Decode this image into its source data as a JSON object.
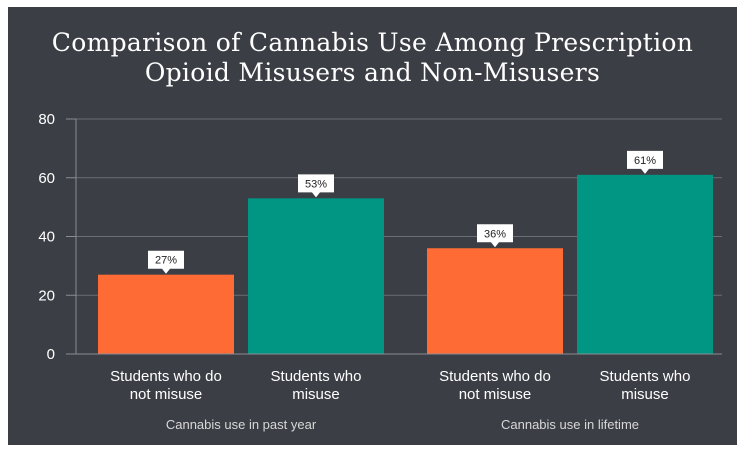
{
  "chart_data": {
    "type": "bar",
    "title_lines": [
      "Comparison of Cannabis Use Among Prescription",
      "Opioid Misusers and Non-Misusers"
    ],
    "ylim": [
      0,
      80
    ],
    "yticks": [
      0,
      20,
      40,
      60,
      80
    ],
    "grid": true,
    "groups": [
      {
        "label": "Cannabis use in past year",
        "bars": [
          {
            "category": [
              "Students who do",
              "not misuse"
            ],
            "value": 27,
            "label": "27%",
            "color": "#ff6b35"
          },
          {
            "category": [
              "Students who",
              "misuse"
            ],
            "value": 53,
            "label": "53%",
            "color": "#009683"
          }
        ]
      },
      {
        "label": "Cannabis use in lifetime",
        "bars": [
          {
            "category": [
              "Students who do",
              "not misuse"
            ],
            "value": 36,
            "label": "36%",
            "color": "#ff6b35"
          },
          {
            "category": [
              "Students who",
              "misuse"
            ],
            "value": 61,
            "label": "61%",
            "color": "#009683"
          }
        ]
      }
    ]
  }
}
